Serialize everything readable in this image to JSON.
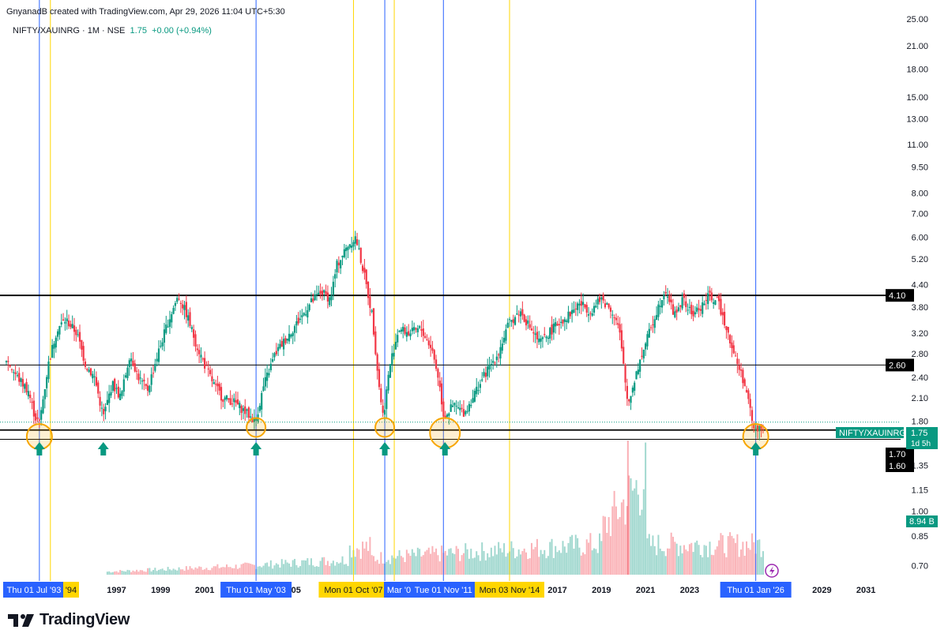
{
  "header": {
    "attribution": "GnyanadB created with TradingView.com, Apr 29, 2026 11:04 UTC+5:30",
    "symbol": "NIFTY/XAUINRG · 1M · NSE",
    "last": "1.75",
    "change": "+0.00 (+0.94%)"
  },
  "brand": {
    "name": "TradingView"
  },
  "colors": {
    "up": "#089981",
    "down": "#f23645",
    "blue_line": "#2962ff",
    "yellow_line": "#ffd600",
    "circle": "#f7a600",
    "arrow": "#089981"
  },
  "chart_data": {
    "type": "candlestick",
    "symbol": "NIFTY/XAUINRG",
    "interval": "1M",
    "exchange": "NSE",
    "y_scale": "log",
    "ylim": [
      0.66,
      25
    ],
    "y_ticks": [
      "25.00",
      "21.00",
      "18.00",
      "15.00",
      "13.00",
      "11.00",
      "9.50",
      "8.00",
      "7.00",
      "6.00",
      "5.20",
      "4.40",
      "3.80",
      "3.20",
      "2.80",
      "2.40",
      "2.10",
      "1.80",
      "1.35",
      "1.15",
      "1.00",
      "0.85",
      "0.70"
    ],
    "x_ticks": [
      "1997",
      "1999",
      "2001",
      "'05",
      "'0",
      "2017",
      "2019",
      "2021",
      "2023",
      "2029",
      "2031"
    ],
    "xlim": [
      1992.0,
      2032.5
    ],
    "price_path": [
      [
        1992.0,
        2.7
      ],
      [
        1992.5,
        2.4
      ],
      [
        1993.0,
        2.2
      ],
      [
        1993.3,
        1.85
      ],
      [
        1993.5,
        1.78
      ],
      [
        1993.9,
        2.6
      ],
      [
        1994.3,
        3.3
      ],
      [
        1994.7,
        3.5
      ],
      [
        1995.2,
        3.2
      ],
      [
        1995.6,
        2.6
      ],
      [
        1996.0,
        2.4
      ],
      [
        1996.4,
        1.85
      ],
      [
        1996.8,
        2.3
      ],
      [
        1997.2,
        2.1
      ],
      [
        1997.6,
        2.8
      ],
      [
        1998.0,
        2.4
      ],
      [
        1998.4,
        2.2
      ],
      [
        1998.8,
        2.7
      ],
      [
        1999.3,
        3.4
      ],
      [
        1999.8,
        4.1
      ],
      [
        2000.2,
        3.6
      ],
      [
        2000.6,
        3.0
      ],
      [
        2001.0,
        2.6
      ],
      [
        2001.4,
        2.3
      ],
      [
        2001.8,
        2.1
      ],
      [
        2002.3,
        2.05
      ],
      [
        2002.7,
        1.95
      ],
      [
        2003.3,
        1.8
      ],
      [
        2003.7,
        2.3
      ],
      [
        2004.2,
        2.8
      ],
      [
        2004.7,
        3.1
      ],
      [
        2005.3,
        3.5
      ],
      [
        2005.8,
        3.9
      ],
      [
        2006.3,
        4.2
      ],
      [
        2006.7,
        4.0
      ],
      [
        2007.0,
        5.0
      ],
      [
        2007.5,
        5.7
      ],
      [
        2007.85,
        6.0
      ],
      [
        2008.2,
        4.8
      ],
      [
        2008.6,
        3.6
      ],
      [
        2008.9,
        2.3
      ],
      [
        2009.1,
        1.85
      ],
      [
        2009.4,
        2.6
      ],
      [
        2009.8,
        3.3
      ],
      [
        2010.3,
        3.2
      ],
      [
        2010.8,
        3.3
      ],
      [
        2011.3,
        2.9
      ],
      [
        2011.6,
        2.4
      ],
      [
        2011.85,
        1.85
      ],
      [
        2012.3,
        2.0
      ],
      [
        2012.8,
        1.9
      ],
      [
        2013.3,
        2.2
      ],
      [
        2013.8,
        2.5
      ],
      [
        2014.3,
        2.8
      ],
      [
        2014.8,
        3.4
      ],
      [
        2015.3,
        3.7
      ],
      [
        2015.8,
        3.3
      ],
      [
        2016.2,
        3.0
      ],
      [
        2016.6,
        3.2
      ],
      [
        2017.0,
        3.4
      ],
      [
        2017.5,
        3.6
      ],
      [
        2018.0,
        3.9
      ],
      [
        2018.5,
        3.7
      ],
      [
        2019.0,
        4.0
      ],
      [
        2019.5,
        3.7
      ],
      [
        2019.8,
        3.3
      ],
      [
        2020.2,
        2.0
      ],
      [
        2020.6,
        2.5
      ],
      [
        2021.0,
        3.0
      ],
      [
        2021.5,
        3.7
      ],
      [
        2021.9,
        4.3
      ],
      [
        2022.3,
        3.6
      ],
      [
        2022.7,
        4.0
      ],
      [
        2023.1,
        3.6
      ],
      [
        2023.5,
        3.8
      ],
      [
        2023.9,
        4.1
      ],
      [
        2024.3,
        3.9
      ],
      [
        2024.7,
        3.3
      ],
      [
        2025.0,
        2.8
      ],
      [
        2025.4,
        2.4
      ],
      [
        2025.7,
        2.0
      ],
      [
        2025.95,
        1.68
      ],
      [
        2026.1,
        1.72
      ],
      [
        2026.3,
        1.75
      ]
    ],
    "horizontal_levels": [
      {
        "value": 4.1,
        "label": "4.10",
        "width": "thick"
      },
      {
        "value": 2.6,
        "label": "2.60",
        "width": "thin"
      },
      {
        "value": 1.7,
        "label": "1.70",
        "width": "thick"
      },
      {
        "value": 1.6,
        "label": "1.60",
        "width": "thin"
      }
    ],
    "vertical_markers": [
      {
        "x": 1993.5,
        "color": "blue",
        "label": "Thu 01 Jul '93"
      },
      {
        "x": 1994.0,
        "color": "yellow",
        "label": "'94"
      },
      {
        "x": 2003.33,
        "color": "blue",
        "label": "Thu 01 May '03"
      },
      {
        "x": 2007.75,
        "color": "yellow",
        "label": "Mon 01 Oct '07"
      },
      {
        "x": 2009.17,
        "color": "blue",
        "label": "Mar '0"
      },
      {
        "x": 2009.6,
        "color": "yellow",
        "label": ""
      },
      {
        "x": 2011.83,
        "color": "blue",
        "label": "Tue 01 Nov '11"
      },
      {
        "x": 2014.83,
        "color": "yellow",
        "label": "Mon 03 Nov '14"
      },
      {
        "x": 2026.0,
        "color": "blue",
        "label": "Thu 01 Jan '26"
      }
    ],
    "support_touches": [
      {
        "x": 1993.5,
        "value": 1.62,
        "size": "medium",
        "arrow": true
      },
      {
        "x": 1996.4,
        "value": 1.62,
        "size": "none",
        "arrow": true
      },
      {
        "x": 2003.33,
        "value": 1.72,
        "size": "small",
        "arrow": true
      },
      {
        "x": 2009.17,
        "value": 1.72,
        "size": "small",
        "arrow": true
      },
      {
        "x": 2011.9,
        "value": 1.66,
        "size": "large",
        "arrow": true
      },
      {
        "x": 2026.0,
        "value": 1.62,
        "size": "medium",
        "arrow": true
      }
    ],
    "volume_last": "8.94 B",
    "price_label": {
      "name": "NIFTY/XAUINRG",
      "value": "1.75",
      "countdown": "1d 5h"
    }
  }
}
